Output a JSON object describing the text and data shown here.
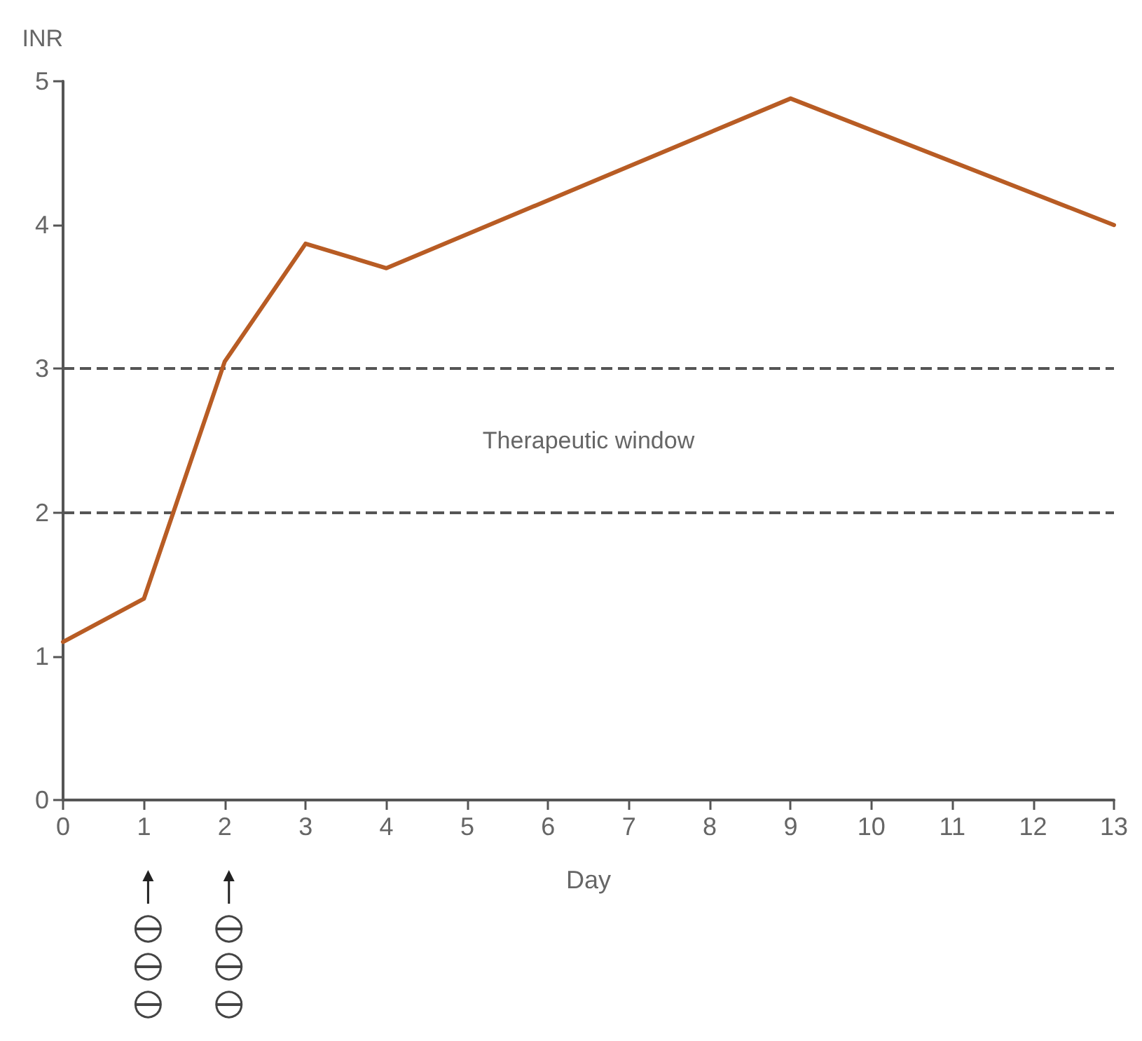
{
  "chart_data": {
    "type": "line",
    "xlabel": "Day",
    "ylabel": "INR",
    "x": [
      0,
      1,
      2,
      3,
      4,
      9,
      13
    ],
    "series": [
      {
        "color": "#b85c24",
        "values": [
          1.1,
          1.4,
          3.05,
          3.87,
          3.7,
          4.88,
          4.0
        ]
      }
    ],
    "xlim": [
      0,
      13
    ],
    "xticks": [
      0,
      1,
      2,
      3,
      4,
      5,
      6,
      7,
      8,
      9,
      10,
      11,
      12,
      13
    ],
    "ylim": [
      0,
      5
    ],
    "yticks": [
      0,
      1,
      2,
      3,
      4,
      5
    ],
    "ref_lines": [
      {
        "axis": "y",
        "value": 3,
        "color": "#555555",
        "line_style": "dashed"
      },
      {
        "axis": "y",
        "value": 2,
        "color": "#555555",
        "line_style": "dashed"
      }
    ],
    "annotations": [
      "Therapeutic window"
    ],
    "grid": false,
    "marker": "none",
    "line_style": "solid"
  }
}
